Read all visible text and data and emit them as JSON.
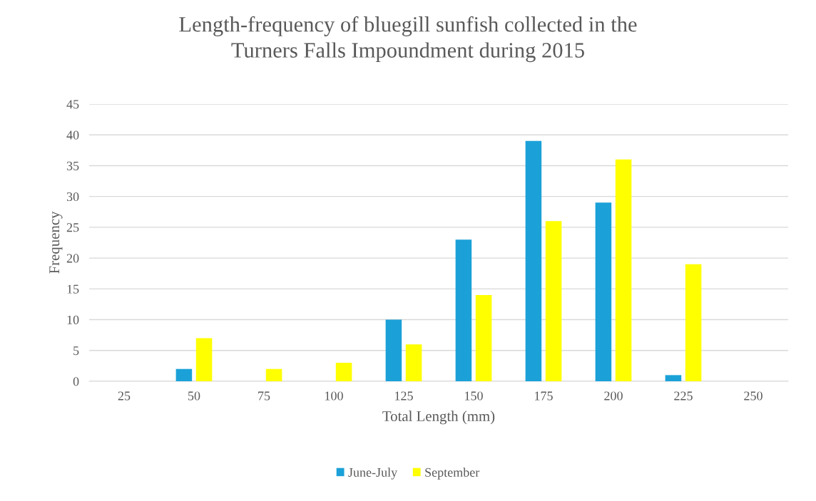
{
  "chart_data": {
    "type": "bar",
    "title": "Length-frequency of bluegill sunfish collected in the\nTurners Falls Impoundment during 2015",
    "xlabel": "Total Length (mm)",
    "ylabel": "Frequency",
    "categories": [
      "25",
      "50",
      "75",
      "100",
      "125",
      "150",
      "175",
      "200",
      "225",
      "250"
    ],
    "series": [
      {
        "name": "June-July",
        "color": "#1ba1d8",
        "values": [
          0,
          2,
          0,
          0,
          10,
          23,
          39,
          29,
          1,
          0
        ]
      },
      {
        "name": "September",
        "color": "#ffff00",
        "values": [
          0,
          7,
          2,
          3,
          6,
          14,
          26,
          36,
          19,
          0
        ]
      }
    ],
    "ylim": [
      0,
      45
    ],
    "yticks": [
      0,
      5,
      10,
      15,
      20,
      25,
      30,
      35,
      40,
      45
    ],
    "grid": "y",
    "legend": "bottom"
  }
}
